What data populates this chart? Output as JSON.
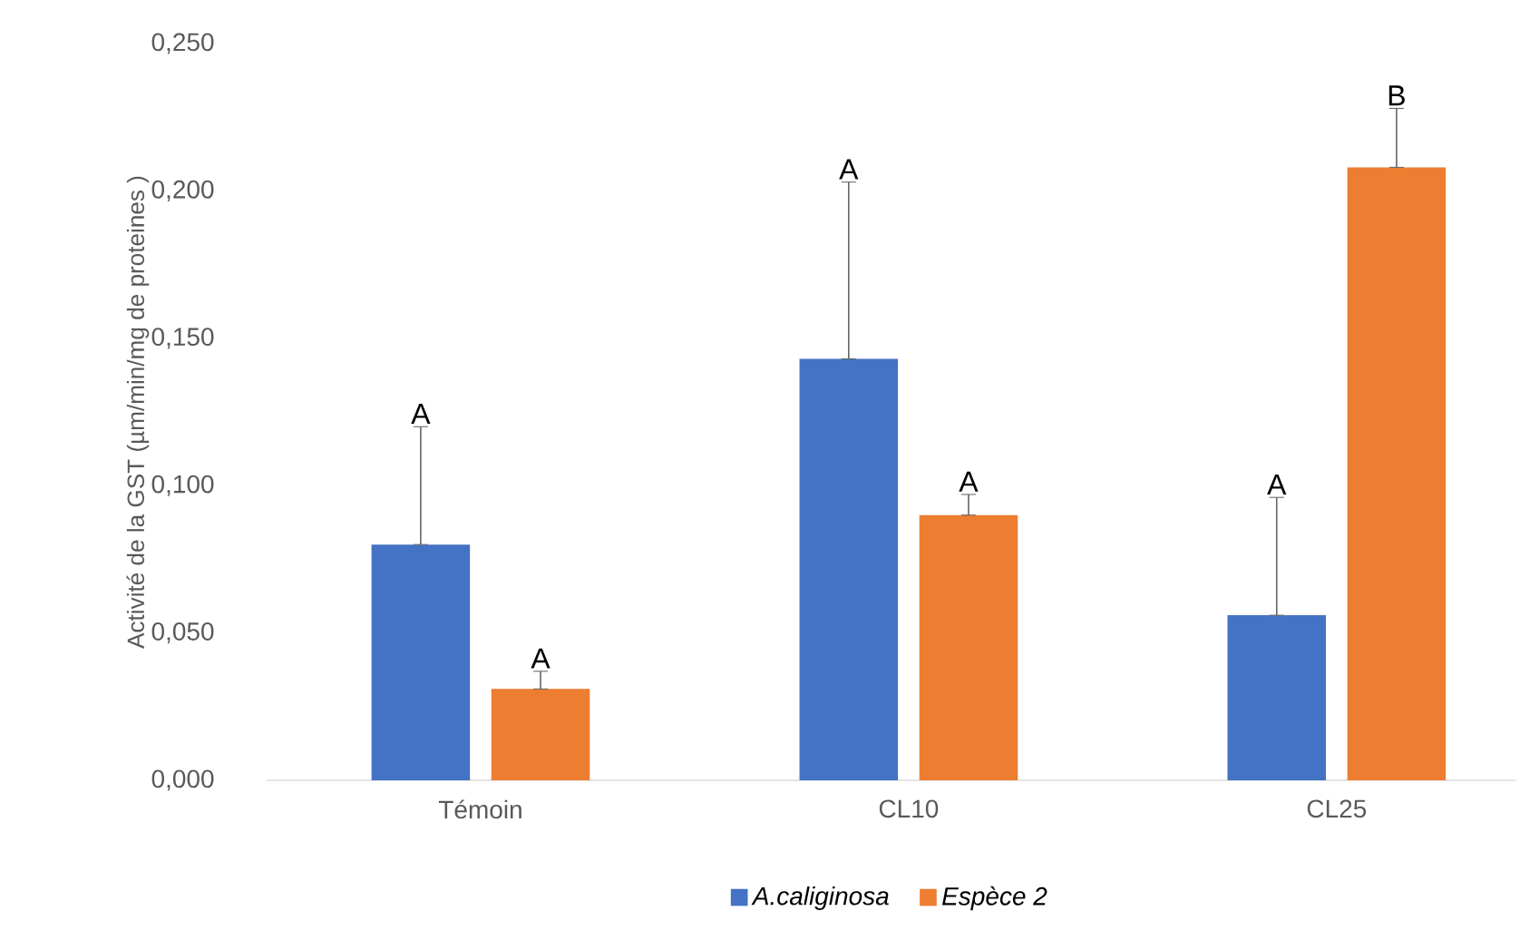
{
  "chart_data": {
    "type": "bar",
    "ylabel": "Activité de la GST (µm/min/mg de proteines )",
    "categories": [
      "Témoin",
      "CL10",
      "CL25"
    ],
    "series": [
      {
        "name": "A.caliginosa",
        "color": "#4472c4",
        "values": [
          0.08,
          0.143,
          0.056
        ],
        "errors": [
          [
            0.08,
            0.12
          ],
          [
            0.143,
            0.203
          ],
          [
            0.056,
            0.096
          ]
        ]
      },
      {
        "name": "Espèce 2",
        "color": "#ed7d31",
        "values": [
          0.031,
          0.09,
          0.208
        ],
        "errors": [
          [
            0.031,
            0.037
          ],
          [
            0.09,
            0.097
          ],
          [
            0.208,
            0.228
          ]
        ]
      }
    ],
    "ylim": [
      0,
      0.25
    ],
    "yticks": [
      {
        "value": 0,
        "label": "0,000"
      },
      {
        "value": 0.05,
        "label": "0,050"
      },
      {
        "value": 0.1,
        "label": "0,100"
      },
      {
        "value": 0.15,
        "label": "0,150"
      },
      {
        "value": 0.2,
        "label": "0,200"
      },
      {
        "value": 0.25,
        "label": "0,250"
      }
    ],
    "grid": false,
    "legend": "bottom",
    "annotations": [
      "A",
      "A",
      "A",
      "A",
      "A",
      "B"
    ]
  }
}
